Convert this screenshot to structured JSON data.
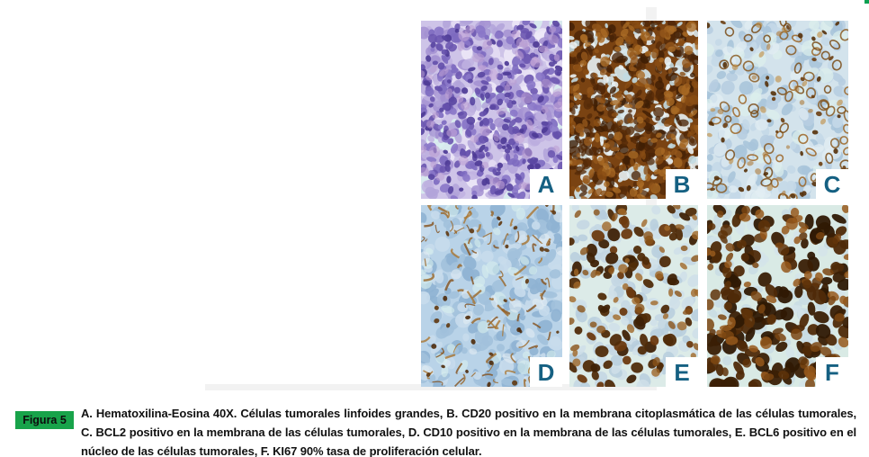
{
  "figure": {
    "panels": [
      {
        "label": "A",
        "stain": "he"
      },
      {
        "label": "B",
        "stain": "cd20"
      },
      {
        "label": "C",
        "stain": "bcl2"
      },
      {
        "label": "D",
        "stain": "cd10"
      },
      {
        "label": "E",
        "stain": "bcl6"
      },
      {
        "label": "F",
        "stain": "ki67"
      }
    ],
    "panel_label_color": "#156082",
    "frame_edge_color": "#f2f2f2"
  },
  "caption": {
    "chip_label": "Figura 5",
    "chip_bg": "#18a34a",
    "chip_text_color": "#0d0d0d",
    "text": "A. Hematoxilina-Eosina 40X. Células tumorales linfoides grandes, B. CD20 positivo en la membrana citoplasmática de las células tumorales, C. BCL2 positivo en la membrana de las células tumorales, D. CD10 positivo en la membrana de las células tumorales, E. BCL6 positivo en el núcleo de las células tumorales, F. KI67 90% tasa de proliferación celular.",
    "text_color": "#111111"
  }
}
